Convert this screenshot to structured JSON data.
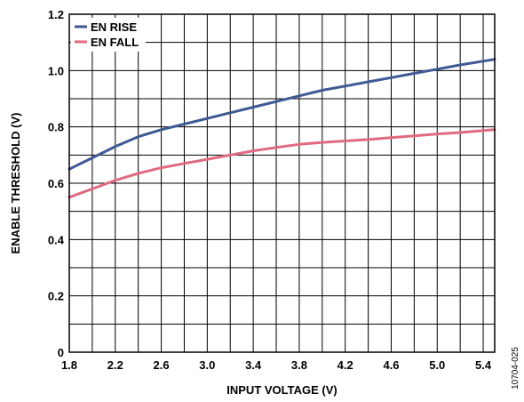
{
  "chart_data": {
    "type": "line",
    "xlabel": "INPUT VOLTAGE (V)",
    "ylabel": "ENABLE THRESHOLD (V)",
    "xlim": [
      1.8,
      5.5
    ],
    "ylim": [
      0,
      1.2
    ],
    "x_ticks": [
      "1.8",
      "2.2",
      "2.6",
      "3.0",
      "3.4",
      "3.8",
      "4.2",
      "4.6",
      "5.0",
      "5.4"
    ],
    "y_ticks": [
      "0",
      "0.2",
      "0.4",
      "0.6",
      "0.8",
      "1.0",
      "1.2"
    ],
    "grid": true,
    "legend_position": "top-left",
    "series": [
      {
        "name": "EN RISE",
        "color": "#3f5a93",
        "x": [
          1.8,
          2.0,
          2.2,
          2.4,
          2.6,
          2.8,
          3.0,
          3.2,
          3.4,
          3.6,
          3.8,
          4.0,
          4.2,
          4.4,
          4.6,
          4.8,
          5.0,
          5.2,
          5.5
        ],
        "y": [
          0.65,
          0.69,
          0.73,
          0.765,
          0.79,
          0.81,
          0.83,
          0.85,
          0.87,
          0.89,
          0.91,
          0.93,
          0.945,
          0.96,
          0.975,
          0.99,
          1.005,
          1.02,
          1.04
        ]
      },
      {
        "name": "EN FALL",
        "color": "#e06a80",
        "x": [
          1.8,
          2.0,
          2.2,
          2.4,
          2.6,
          2.8,
          3.0,
          3.2,
          3.4,
          3.6,
          3.8,
          4.0,
          4.2,
          4.4,
          4.6,
          4.8,
          5.0,
          5.2,
          5.5
        ],
        "y": [
          0.55,
          0.58,
          0.61,
          0.635,
          0.655,
          0.67,
          0.685,
          0.7,
          0.715,
          0.727,
          0.738,
          0.745,
          0.75,
          0.755,
          0.762,
          0.768,
          0.775,
          0.78,
          0.79
        ]
      }
    ]
  },
  "figure_id": "10704-025"
}
